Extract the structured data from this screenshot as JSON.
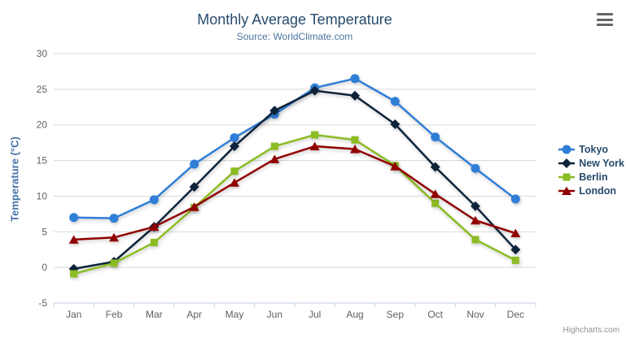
{
  "header": {
    "title": "Monthly Average Temperature",
    "subtitle": "Source: WorldClimate.com"
  },
  "credits": "Highcharts.com",
  "menu_icon": "hamburger-icon",
  "colors": {
    "title": "#274b6d",
    "subtitle": "#4d759e",
    "yaxis_title": "#4572a7",
    "axis_labels": "#606060",
    "grid_line": "#d8d8d8",
    "axis_line": "#c0d0e0",
    "legend_text": "#274b6d",
    "credits_text": "#909090"
  },
  "chart_data": {
    "type": "line",
    "title": "Monthly Average Temperature",
    "subtitle": "Source: WorldClimate.com",
    "xlabel": "",
    "ylabel": "Temperature (°C)",
    "categories": [
      "Jan",
      "Feb",
      "Mar",
      "Apr",
      "May",
      "Jun",
      "Jul",
      "Aug",
      "Sep",
      "Oct",
      "Nov",
      "Dec"
    ],
    "ylim": [
      -5,
      30
    ],
    "yticks": [
      -5,
      0,
      5,
      10,
      15,
      20,
      25,
      30
    ],
    "grid": true,
    "legend_position": "right",
    "series": [
      {
        "name": "Tokyo",
        "color": "#2f7ed8",
        "marker": "circle",
        "values": [
          7.0,
          6.9,
          9.5,
          14.5,
          18.2,
          21.5,
          25.2,
          26.5,
          23.3,
          18.3,
          13.9,
          9.6
        ]
      },
      {
        "name": "New York",
        "color": "#0d233a",
        "marker": "diamond",
        "values": [
          -0.2,
          0.8,
          5.7,
          11.3,
          17.0,
          22.0,
          24.8,
          24.1,
          20.1,
          14.1,
          8.6,
          2.5
        ]
      },
      {
        "name": "Berlin",
        "color": "#8bbc21",
        "marker": "square",
        "values": [
          -0.9,
          0.6,
          3.5,
          8.4,
          13.5,
          17.0,
          18.6,
          17.9,
          14.3,
          9.0,
          3.9,
          1.0
        ]
      },
      {
        "name": "London",
        "color": "#910000",
        "marker": "triangle",
        "values": [
          3.9,
          4.2,
          5.7,
          8.5,
          11.9,
          15.2,
          17.0,
          16.6,
          14.2,
          10.3,
          6.6,
          4.8
        ]
      }
    ]
  }
}
